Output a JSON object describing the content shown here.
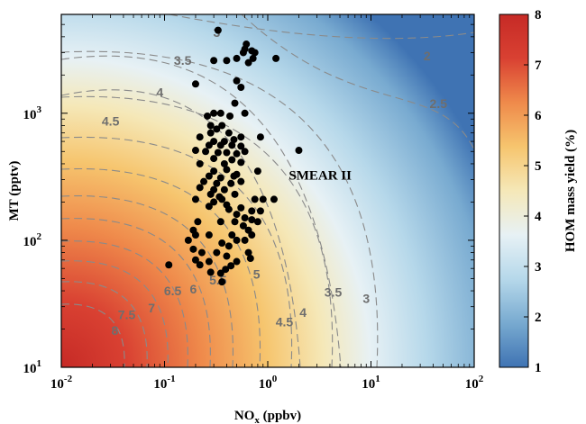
{
  "chart_data": {
    "type": "heatmap",
    "xlabel_main": "NO",
    "xlabel_sub": "x",
    "xlabel_rest": " (ppbv)",
    "ylabel": "MT (pptv)",
    "xscale": "log",
    "yscale": "log",
    "xlim": [
      0.01,
      100
    ],
    "ylim": [
      10,
      6000
    ],
    "x_ticks": [
      {
        "value": 0.01,
        "base": "10",
        "exp": "-2"
      },
      {
        "value": 0.1,
        "base": "10",
        "exp": "-1"
      },
      {
        "value": 1,
        "base": "10",
        "exp": "0"
      },
      {
        "value": 10,
        "base": "10",
        "exp": "1"
      },
      {
        "value": 100,
        "base": "10",
        "exp": "2"
      }
    ],
    "y_ticks": [
      {
        "value": 10,
        "base": "10",
        "exp": "1"
      },
      {
        "value": 100,
        "base": "10",
        "exp": "2"
      },
      {
        "value": 1000,
        "base": "10",
        "exp": "3"
      }
    ],
    "colorbar": {
      "label": "HOM mass yield (%)",
      "min": 1,
      "max": 8,
      "ticks": [
        "1",
        "2",
        "3",
        "4",
        "5",
        "6",
        "7",
        "8"
      ],
      "colors": [
        "#3f73b3",
        "#78aad0",
        "#b6d8ea",
        "#e7f1f5",
        "#f5e8b8",
        "#f6c56e",
        "#ef8a4b",
        "#d94132",
        "#c62a26"
      ]
    },
    "contours": [
      {
        "level": "2",
        "label_x": 35,
        "label_y": 2600
      },
      {
        "level": "2.5",
        "label_x": 45,
        "label_y": 1100
      },
      {
        "level": "3",
        "label_x": 0.32,
        "label_y": 4000
      },
      {
        "level": "3",
        "label_x": 9,
        "label_y": 32
      },
      {
        "level": "3.5",
        "label_x": 0.15,
        "label_y": 2400
      },
      {
        "level": "3.5",
        "label_x": 4.3,
        "label_y": 36
      },
      {
        "level": "4",
        "label_x": 0.09,
        "label_y": 1350
      },
      {
        "level": "4",
        "label_x": 2.2,
        "label_y": 25
      },
      {
        "level": "4.5",
        "label_x": 0.03,
        "label_y": 800
      },
      {
        "level": "4.5",
        "label_x": 1.45,
        "label_y": 21
      },
      {
        "level": "5",
        "label_x": 0.78,
        "label_y": 50
      },
      {
        "level": "5.5",
        "label_x": 0.33,
        "label_y": 45
      },
      {
        "level": "6",
        "label_x": 0.19,
        "label_y": 38
      },
      {
        "level": "6.5",
        "label_x": 0.12,
        "label_y": 37
      },
      {
        "level": "7",
        "label_x": 0.075,
        "label_y": 27
      },
      {
        "level": "7.5",
        "label_x": 0.043,
        "label_y": 24
      },
      {
        "level": "8",
        "label_x": 0.033,
        "label_y": 18
      }
    ],
    "annotation": {
      "text": "SMEAR II",
      "x": 1.6,
      "y": 300
    },
    "points": [
      [
        0.33,
        4500
      ],
      [
        0.62,
        3500
      ],
      [
        0.6,
        3200
      ],
      [
        0.58,
        3000
      ],
      [
        0.7,
        3100
      ],
      [
        0.75,
        3000
      ],
      [
        0.5,
        2700
      ],
      [
        0.3,
        2600
      ],
      [
        0.4,
        2600
      ],
      [
        0.65,
        2500
      ],
      [
        0.72,
        2700
      ],
      [
        1.2,
        2700
      ],
      [
        0.5,
        1800
      ],
      [
        0.55,
        1600
      ],
      [
        0.2,
        1700
      ],
      [
        0.48,
        1200
      ],
      [
        0.3,
        1000
      ],
      [
        0.35,
        1000
      ],
      [
        0.26,
        950
      ],
      [
        0.43,
        950
      ],
      [
        0.6,
        1000
      ],
      [
        0.28,
        800
      ],
      [
        0.36,
        800
      ],
      [
        0.32,
        750
      ],
      [
        0.42,
        700
      ],
      [
        0.28,
        700
      ],
      [
        0.22,
        650
      ],
      [
        0.55,
        650
      ],
      [
        0.85,
        650
      ],
      [
        0.3,
        600
      ],
      [
        0.38,
        600
      ],
      [
        0.47,
        620
      ],
      [
        0.27,
        560
      ],
      [
        0.35,
        560
      ],
      [
        0.45,
        560
      ],
      [
        0.55,
        550
      ],
      [
        0.2,
        510
      ],
      [
        0.25,
        500
      ],
      [
        0.33,
        490
      ],
      [
        0.4,
        490
      ],
      [
        0.5,
        480
      ],
      [
        0.6,
        500
      ],
      [
        2.0,
        510
      ],
      [
        0.3,
        440
      ],
      [
        0.45,
        430
      ],
      [
        0.22,
        400
      ],
      [
        0.38,
        400
      ],
      [
        0.55,
        410
      ],
      [
        0.3,
        350
      ],
      [
        0.4,
        360
      ],
      [
        0.5,
        330
      ],
      [
        0.27,
        320
      ],
      [
        0.35,
        310
      ],
      [
        0.47,
        320
      ],
      [
        0.8,
        350
      ],
      [
        0.24,
        290
      ],
      [
        0.32,
        280
      ],
      [
        0.44,
        280
      ],
      [
        0.55,
        290
      ],
      [
        0.22,
        260
      ],
      [
        0.3,
        250
      ],
      [
        0.38,
        250
      ],
      [
        0.28,
        230
      ],
      [
        0.34,
        220
      ],
      [
        0.48,
        230
      ],
      [
        0.2,
        210
      ],
      [
        0.3,
        200
      ],
      [
        0.36,
        210
      ],
      [
        0.4,
        190
      ],
      [
        0.27,
        185
      ],
      [
        0.42,
        175
      ],
      [
        0.55,
        180
      ],
      [
        0.7,
        170
      ],
      [
        0.75,
        210
      ],
      [
        0.9,
        210
      ],
      [
        1.15,
        210
      ],
      [
        0.85,
        170
      ],
      [
        0.5,
        160
      ],
      [
        0.6,
        150
      ],
      [
        0.7,
        145
      ],
      [
        0.8,
        140
      ],
      [
        0.21,
        140
      ],
      [
        0.35,
        140
      ],
      [
        0.48,
        140
      ],
      [
        0.58,
        130
      ],
      [
        0.65,
        120
      ],
      [
        0.19,
        120
      ],
      [
        0.2,
        110
      ],
      [
        0.27,
        110
      ],
      [
        0.45,
        110
      ],
      [
        0.7,
        110
      ],
      [
        0.17,
        100
      ],
      [
        0.36,
        95
      ],
      [
        0.5,
        100
      ],
      [
        0.6,
        100
      ],
      [
        0.42,
        90
      ],
      [
        0.19,
        85
      ],
      [
        0.23,
        80
      ],
      [
        0.32,
        80
      ],
      [
        0.4,
        75
      ],
      [
        0.65,
        80
      ],
      [
        0.68,
        72
      ],
      [
        0.2,
        70
      ],
      [
        0.27,
        68
      ],
      [
        0.5,
        68
      ],
      [
        0.11,
        64
      ],
      [
        0.22,
        64
      ],
      [
        0.39,
        59
      ],
      [
        0.44,
        63
      ],
      [
        0.28,
        56
      ],
      [
        0.35,
        55
      ],
      [
        0.36,
        47
      ]
    ]
  }
}
